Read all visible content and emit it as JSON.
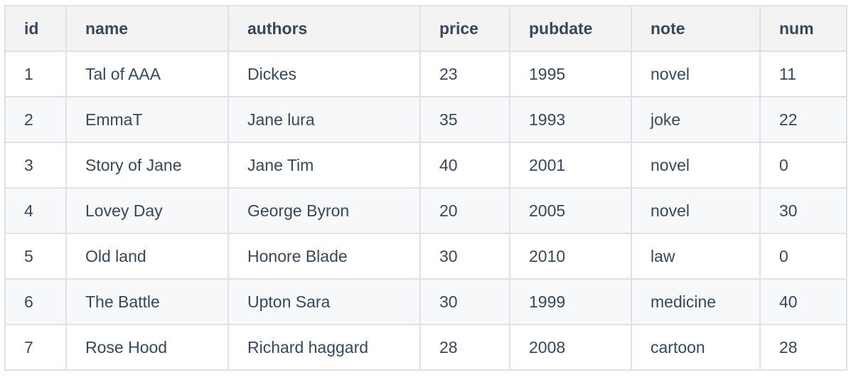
{
  "table": {
    "headers": [
      "id",
      "name",
      "authors",
      "price",
      "pubdate",
      "note",
      "num"
    ],
    "rows": [
      [
        "1",
        "Tal of AAA",
        "Dickes",
        "23",
        "1995",
        "novel",
        "11"
      ],
      [
        "2",
        "EmmaT",
        "Jane lura",
        "35",
        "1993",
        "joke",
        "22"
      ],
      [
        "3",
        "Story of Jane",
        "Jane Tim",
        "40",
        "2001",
        "novel",
        "0"
      ],
      [
        "4",
        "Lovey Day",
        "George Byron",
        "20",
        "2005",
        "novel",
        "30"
      ],
      [
        "5",
        "Old land",
        "Honore Blade",
        "30",
        "2010",
        "law",
        "0"
      ],
      [
        "6",
        "The Battle",
        "Upton Sara",
        "30",
        "1999",
        "medicine",
        "40"
      ],
      [
        "7",
        "Rose Hood",
        "Richard haggard",
        "28",
        "2008",
        "cartoon",
        "28"
      ]
    ]
  }
}
